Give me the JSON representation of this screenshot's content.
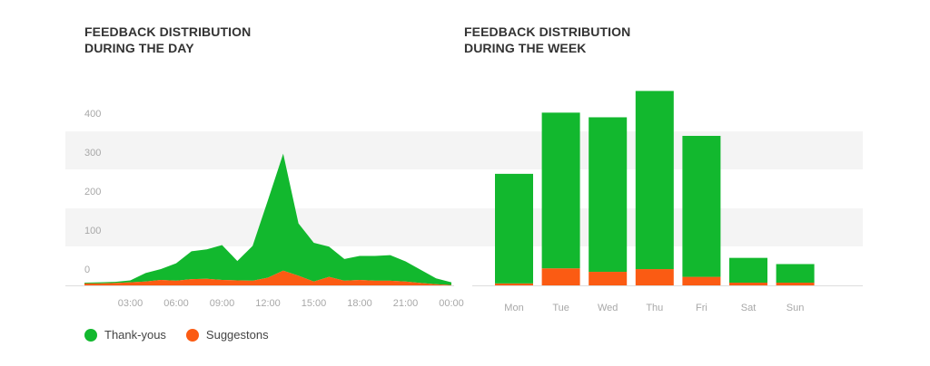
{
  "colors": {
    "thanks": "#12b82e",
    "suggestions": "#fb5b13",
    "band": "#f4f4f4",
    "axis": "#dddddd"
  },
  "legend": {
    "thanks_label": "Thank-yous",
    "suggestions_label": "Suggestons"
  },
  "chart_data": [
    {
      "type": "area",
      "title_line1": "FEEDBACK DISTRIBUTION",
      "title_line2": "DURING THE DAY",
      "y_ticks": [
        "0",
        "100",
        "200",
        "300",
        "400"
      ],
      "x_ticks": [
        "03:00",
        "06:00",
        "09:00",
        "12:00",
        "15:00",
        "18:00",
        "21:00",
        "00:00"
      ],
      "x_hours": [
        0,
        1,
        2,
        3,
        4,
        5,
        6,
        7,
        8,
        9,
        10,
        11,
        12,
        13,
        14,
        15,
        16,
        17,
        18,
        19,
        20,
        21,
        22,
        23,
        24
      ],
      "stacked": true,
      "series": [
        {
          "name": "Suggestons",
          "color_key": "suggestions",
          "values": [
            5,
            5,
            6,
            8,
            10,
            14,
            12,
            16,
            17,
            14,
            13,
            12,
            20,
            38,
            25,
            10,
            22,
            12,
            14,
            12,
            12,
            10,
            6,
            3,
            1
          ]
        },
        {
          "name": "Thank-yous",
          "color_key": "thanks",
          "values": [
            2,
            3,
            3,
            5,
            22,
            28,
            45,
            72,
            76,
            90,
            50,
            90,
            200,
            302,
            135,
            100,
            78,
            56,
            62,
            64,
            66,
            52,
            34,
            15,
            7
          ]
        }
      ]
    },
    {
      "type": "bar",
      "title_line1": "FEEDBACK DISTRIBUTION",
      "title_line2": "DURING THE WEEK",
      "categories": [
        "Mon",
        "Tue",
        "Wed",
        "Thu",
        "Fri",
        "Sat",
        "Sun"
      ],
      "stacked": true,
      "series": [
        {
          "name": "Suggestons",
          "color_key": "suggestions",
          "values": [
            5,
            44,
            35,
            42,
            22,
            7,
            7
          ]
        },
        {
          "name": "Thank-yous",
          "color_key": "thanks",
          "values": [
            283,
            402,
            399,
            460,
            364,
            64,
            48
          ]
        }
      ]
    }
  ]
}
